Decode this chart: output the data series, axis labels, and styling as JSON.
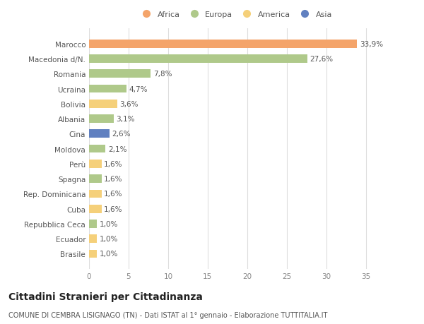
{
  "countries": [
    "Marocco",
    "Macedonia d/N.",
    "Romania",
    "Ucraina",
    "Bolivia",
    "Albania",
    "Cina",
    "Moldova",
    "Perù",
    "Spagna",
    "Rep. Dominicana",
    "Cuba",
    "Repubblica Ceca",
    "Ecuador",
    "Brasile"
  ],
  "values": [
    33.9,
    27.6,
    7.8,
    4.7,
    3.6,
    3.1,
    2.6,
    2.1,
    1.6,
    1.6,
    1.6,
    1.6,
    1.0,
    1.0,
    1.0
  ],
  "labels": [
    "33,9%",
    "27,6%",
    "7,8%",
    "4,7%",
    "3,6%",
    "3,1%",
    "2,6%",
    "2,1%",
    "1,6%",
    "1,6%",
    "1,6%",
    "1,6%",
    "1,0%",
    "1,0%",
    "1,0%"
  ],
  "continents": [
    "Africa",
    "Europa",
    "Europa",
    "Europa",
    "America",
    "Europa",
    "Asia",
    "Europa",
    "America",
    "Europa",
    "America",
    "America",
    "Europa",
    "America",
    "America"
  ],
  "continent_colors": {
    "Africa": "#F4A46A",
    "Europa": "#AFC98A",
    "America": "#F5D07A",
    "Asia": "#6080C0"
  },
  "legend_order": [
    "Africa",
    "Europa",
    "America",
    "Asia"
  ],
  "title": "Cittadini Stranieri per Cittadinanza",
  "subtitle": "COMUNE DI CEMBRA LISIGNAGO (TN) - Dati ISTAT al 1° gennaio - Elaborazione TUTTITALIA.IT",
  "xlim": [
    0,
    37
  ],
  "xticks": [
    0,
    5,
    10,
    15,
    20,
    25,
    30,
    35
  ],
  "background_color": "#ffffff",
  "bar_height": 0.55,
  "label_fontsize": 7.5,
  "tick_fontsize": 7.5,
  "title_fontsize": 10,
  "subtitle_fontsize": 7
}
